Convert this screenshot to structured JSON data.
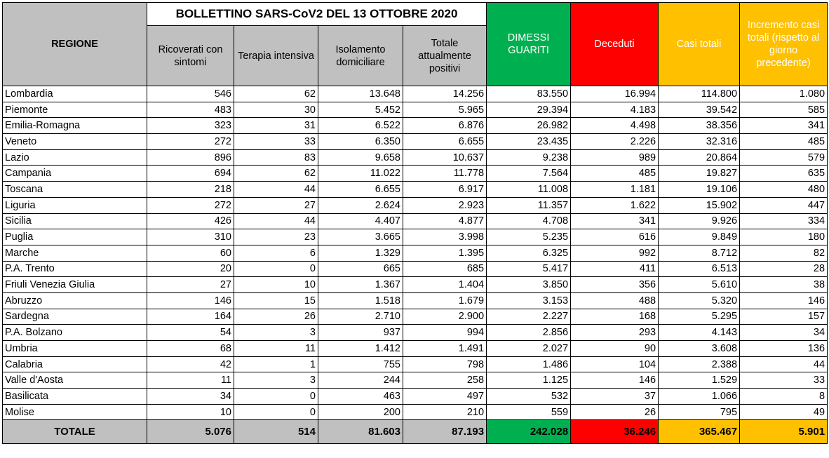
{
  "header": {
    "title": "BOLLETTINO SARS-CoV2 DEL 13 OTTOBRE 2020",
    "regione": "REGIONE",
    "columns": [
      "Ricoverati con sintomi",
      "Terapia intensiva",
      "Isolamento domiciliare",
      "Totale attualmente positivi",
      "DIMESSI GUARITI",
      "Deceduti",
      "Casi totali",
      "Incremento casi totali (rispetto al giorno precedente)"
    ]
  },
  "rows": [
    {
      "regione": "Lombardia",
      "values": [
        "546",
        "62",
        "13.648",
        "14.256",
        "83.550",
        "16.994",
        "114.800",
        "1.080"
      ]
    },
    {
      "regione": "Piemonte",
      "values": [
        "483",
        "30",
        "5.452",
        "5.965",
        "29.394",
        "4.183",
        "39.542",
        "585"
      ]
    },
    {
      "regione": "Emilia-Romagna",
      "values": [
        "323",
        "31",
        "6.522",
        "6.876",
        "26.982",
        "4.498",
        "38.356",
        "341"
      ]
    },
    {
      "regione": "Veneto",
      "values": [
        "272",
        "33",
        "6.350",
        "6.655",
        "23.435",
        "2.226",
        "32.316",
        "485"
      ]
    },
    {
      "regione": "Lazio",
      "values": [
        "896",
        "83",
        "9.658",
        "10.637",
        "9.238",
        "989",
        "20.864",
        "579"
      ]
    },
    {
      "regione": "Campania",
      "values": [
        "694",
        "62",
        "11.022",
        "11.778",
        "7.564",
        "485",
        "19.827",
        "635"
      ]
    },
    {
      "regione": "Toscana",
      "values": [
        "218",
        "44",
        "6.655",
        "6.917",
        "11.008",
        "1.181",
        "19.106",
        "480"
      ]
    },
    {
      "regione": "Liguria",
      "values": [
        "272",
        "27",
        "2.624",
        "2.923",
        "11.357",
        "1.622",
        "15.902",
        "447"
      ]
    },
    {
      "regione": "Sicilia",
      "values": [
        "426",
        "44",
        "4.407",
        "4.877",
        "4.708",
        "341",
        "9.926",
        "334"
      ]
    },
    {
      "regione": "Puglia",
      "values": [
        "310",
        "23",
        "3.665",
        "3.998",
        "5.235",
        "616",
        "9.849",
        "180"
      ]
    },
    {
      "regione": "Marche",
      "values": [
        "60",
        "6",
        "1.329",
        "1.395",
        "6.325",
        "992",
        "8.712",
        "82"
      ]
    },
    {
      "regione": "P.A. Trento",
      "values": [
        "20",
        "0",
        "665",
        "685",
        "5.417",
        "411",
        "6.513",
        "28"
      ]
    },
    {
      "regione": "Friuli Venezia Giulia",
      "values": [
        "27",
        "10",
        "1.367",
        "1.404",
        "3.850",
        "356",
        "5.610",
        "38"
      ]
    },
    {
      "regione": "Abruzzo",
      "values": [
        "146",
        "15",
        "1.518",
        "1.679",
        "3.153",
        "488",
        "5.320",
        "146"
      ]
    },
    {
      "regione": "Sardegna",
      "values": [
        "164",
        "26",
        "2.710",
        "2.900",
        "2.227",
        "168",
        "5.295",
        "157"
      ]
    },
    {
      "regione": "P.A. Bolzano",
      "values": [
        "54",
        "3",
        "937",
        "994",
        "2.856",
        "293",
        "4.143",
        "34"
      ]
    },
    {
      "regione": "Umbria",
      "values": [
        "68",
        "11",
        "1.412",
        "1.491",
        "2.027",
        "90",
        "3.608",
        "136"
      ]
    },
    {
      "regione": "Calabria",
      "values": [
        "42",
        "1",
        "755",
        "798",
        "1.486",
        "104",
        "2.388",
        "44"
      ]
    },
    {
      "regione": "Valle d'Aosta",
      "values": [
        "11",
        "3",
        "244",
        "258",
        "1.125",
        "146",
        "1.529",
        "33"
      ]
    },
    {
      "regione": "Basilicata",
      "values": [
        "34",
        "0",
        "463",
        "497",
        "532",
        "37",
        "1.066",
        "8"
      ]
    },
    {
      "regione": "Molise",
      "values": [
        "10",
        "0",
        "200",
        "210",
        "559",
        "26",
        "795",
        "49"
      ]
    }
  ],
  "totale": {
    "label": "TOTALE",
    "values": [
      "5.076",
      "514",
      "81.603",
      "87.193",
      "242.028",
      "36.246",
      "365.467",
      "5.901"
    ]
  },
  "colors": {
    "header_gray": "#c0c0c0",
    "green": "#00b050",
    "red": "#ff0000",
    "yellow": "#ffc000"
  }
}
